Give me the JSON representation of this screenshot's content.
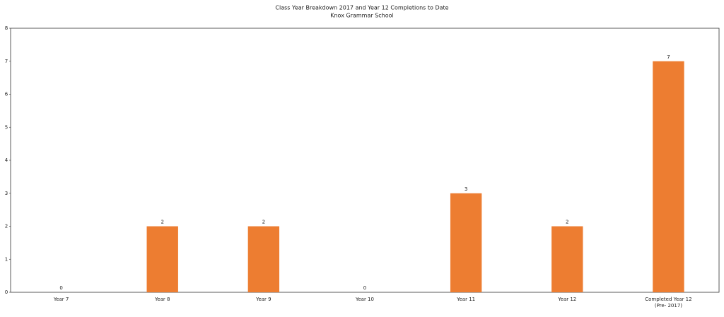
{
  "chart_data": {
    "type": "bar",
    "title": "Class Year Breakdown 2017 and Year 12 Completions to Date",
    "subtitle": "Knox Grammar School",
    "categories": [
      "Year 7",
      "Year 8",
      "Year 9",
      "Year 10",
      "Year 11",
      "Year 12",
      "Completed Year 12 (Pre- 2017)"
    ],
    "values": [
      0,
      2,
      2,
      0,
      3,
      2,
      7
    ],
    "color": "#ed7d31",
    "ylim": [
      0,
      8
    ],
    "yticks": [
      0,
      1,
      2,
      3,
      4,
      5,
      6,
      7,
      8
    ],
    "grid": false
  }
}
